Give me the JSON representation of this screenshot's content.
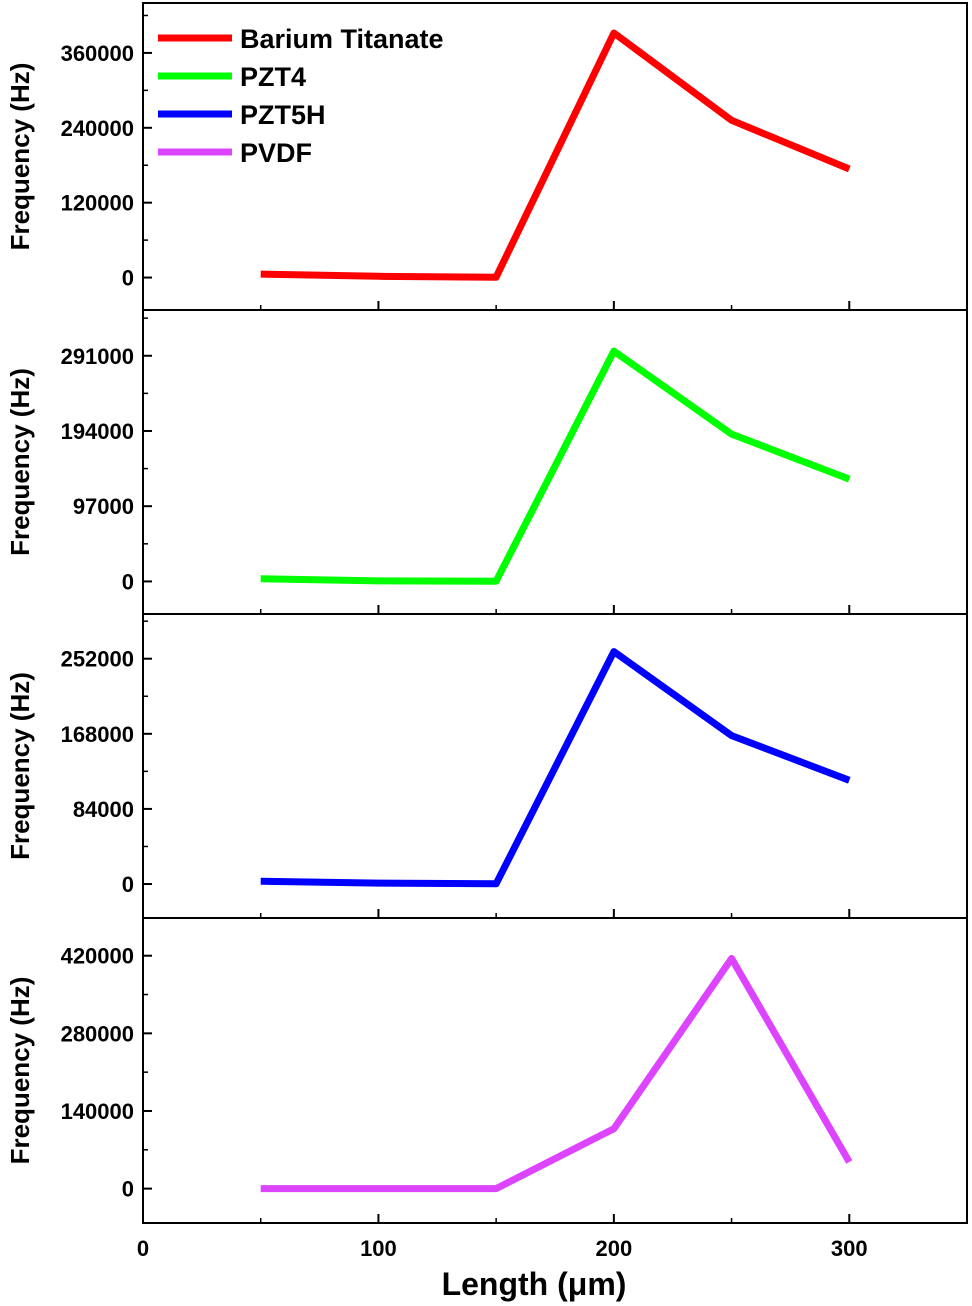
{
  "chart_data": {
    "type": "line",
    "layout": "stacked-panels-shared-x",
    "x": [
      50,
      100,
      150,
      200,
      250,
      300
    ],
    "xlabel": "Length (μm)",
    "xlim": [
      0,
      350
    ],
    "xticks": [
      0,
      100,
      200,
      300
    ],
    "xtick_labels": [
      "0",
      "100",
      "200",
      "300"
    ],
    "grid": false,
    "legend": {
      "placement": "top-left",
      "entries": [
        {
          "label": "Barium Titanate",
          "color": "#ff0000"
        },
        {
          "label": "PZT4",
          "color": "#00ff00"
        },
        {
          "label": "PZT5H",
          "color": "#0000ff"
        },
        {
          "label": "PVDF",
          "color": "#dd44ff"
        }
      ]
    },
    "panels": [
      {
        "series_name": "Barium Titanate",
        "color": "#ff0000",
        "ylabel": "Frequency (Hz)",
        "ylim": [
          -52000,
          440000
        ],
        "yticks": [
          0,
          120000,
          240000,
          360000
        ],
        "ytick_labels": [
          "0",
          "120000",
          "240000",
          "360000"
        ],
        "values": [
          5500,
          2000,
          500,
          392000,
          252000,
          174000
        ]
      },
      {
        "series_name": "PZT4",
        "color": "#00ff00",
        "ylabel": "Frequency (Hz)",
        "ylim": [
          -42000,
          350000
        ],
        "yticks": [
          0,
          97000,
          194000,
          291000
        ],
        "ytick_labels": [
          "0",
          "97000",
          "194000",
          "291000"
        ],
        "values": [
          3500,
          700,
          300,
          297000,
          190000,
          132000
        ]
      },
      {
        "series_name": "PZT5H",
        "color": "#0000ff",
        "ylabel": "Frequency (Hz)",
        "ylim": [
          -38000,
          302000
        ],
        "yticks": [
          0,
          84000,
          168000,
          252000
        ],
        "ytick_labels": [
          "0",
          "84000",
          "168000",
          "252000"
        ],
        "values": [
          3000,
          1000,
          200,
          260000,
          166000,
          116000
        ]
      },
      {
        "series_name": "PVDF",
        "color": "#dd44ff",
        "ylabel": "Frequency (Hz)",
        "ylim": [
          -62000,
          488000
        ],
        "yticks": [
          0,
          140000,
          280000,
          420000
        ],
        "ytick_labels": [
          "0",
          "140000",
          "280000",
          "420000"
        ],
        "values": [
          0,
          0,
          0,
          108000,
          415000,
          48000
        ]
      }
    ]
  }
}
